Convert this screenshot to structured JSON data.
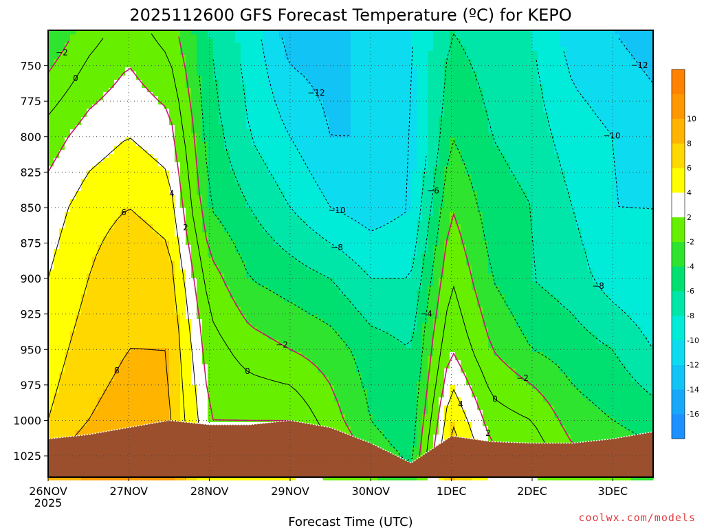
{
  "chart_data": {
    "type": "heatmap",
    "title": "2025112600 GFS Forecast Temperature (ºC) for KEPO",
    "xlabel": "Forecast Time (UTC)",
    "ylabel": "",
    "credit": "coolwx.com/models",
    "y_scale": "pressure (hPa), inverted",
    "ylim": [
      1040,
      725
    ],
    "y_ticks": [
      "750",
      "775",
      "800",
      "825",
      "850",
      "875",
      "900",
      "925",
      "950",
      "975",
      "1000",
      "1025"
    ],
    "x_ticks": [
      "26NOV",
      "27NOV",
      "28NOV",
      "29NOV",
      "30NOV",
      "1DEC",
      "2DEC",
      "3DEC"
    ],
    "x_tick_year": "2025",
    "x_range_days": [
      0,
      7.5
    ],
    "grid": true,
    "colorbar": {
      "placement": "right",
      "levels": [
        -18,
        -16,
        -14,
        -12,
        -10,
        -8,
        -6,
        -4,
        -2,
        2,
        4,
        6,
        8,
        10,
        12
      ],
      "labels": [
        "-16",
        "-14",
        "-12",
        "-10",
        "-8",
        "-6",
        "-4",
        "-2",
        "2",
        "4",
        "6",
        "8",
        "10"
      ],
      "colors": [
        "#1e90ff",
        "#18a8fa",
        "#12c3f5",
        "#0ddcf0",
        "#00ecd8",
        "#00e6a8",
        "#00e070",
        "#2ee42e",
        "#66f000",
        "#ffffff",
        "#ffff00",
        "#ffd800",
        "#ffb400",
        "#ff9800",
        "#ff8200"
      ]
    },
    "contour_labels": [
      "-12",
      "-10",
      "-8",
      "-6",
      "-4",
      "-2",
      "0",
      "2",
      "4",
      "6",
      "8"
    ],
    "profiles": [
      {
        "t": 0.0,
        "temps": {
          "725": -4,
          "800": 1,
          "850": 3,
          "900": 4,
          "950": 5,
          "1000": 6
        }
      },
      {
        "t": 0.5,
        "temps": {
          "725": -1,
          "800": 3,
          "850": 5,
          "900": 6,
          "950": 7,
          "1000": 8
        }
      },
      {
        "t": 1.0,
        "temps": {
          "725": 1,
          "800": 4,
          "850": 6,
          "900": 8,
          "950": 8,
          "1000": 9
        }
      },
      {
        "t": 1.5,
        "temps": {
          "725": -1,
          "800": 3,
          "850": 5,
          "900": 7,
          "950": 8,
          "1000": 8
        }
      },
      {
        "t": 2.0,
        "temps": {
          "725": -6,
          "800": -5,
          "850": -4,
          "900": -1,
          "950": 1,
          "1000": 2
        }
      },
      {
        "t": 2.5,
        "temps": {
          "725": -9,
          "800": -8,
          "850": -6,
          "900": -4,
          "950": -1,
          "1000": 2
        }
      },
      {
        "t": 3.0,
        "temps": {
          "725": -13,
          "800": -10,
          "850": -8,
          "900": -5,
          "950": -2,
          "1000": 2
        }
      },
      {
        "t": 3.5,
        "temps": {
          "725": -13,
          "800": -12,
          "850": -10,
          "900": -6,
          "950": -3,
          "1000": -1
        }
      },
      {
        "t": 4.0,
        "temps": {
          "725": -11,
          "800": -12,
          "850": -11,
          "900": -8,
          "950": -5,
          "1000": -4
        }
      },
      {
        "t": 4.5,
        "temps": {
          "725": -10,
          "800": -11,
          "850": -10,
          "900": -8,
          "950": -6,
          "1000": -6
        }
      },
      {
        "t": 5.0,
        "temps": {
          "725": -6,
          "800": -4,
          "850": -2,
          "900": 0,
          "950": 2,
          "1000": 6
        }
      },
      {
        "t": 5.5,
        "temps": {
          "725": -7,
          "800": -6,
          "850": -5,
          "900": -4,
          "950": -2,
          "1000": 1
        }
      },
      {
        "t": 6.0,
        "temps": {
          "725": -8,
          "800": -7,
          "850": -6,
          "900": -6,
          "950": -4,
          "1000": 0
        }
      },
      {
        "t": 6.5,
        "temps": {
          "725": -11,
          "800": -9,
          "850": -8,
          "900": -7,
          "950": -5,
          "1000": -3
        }
      },
      {
        "t": 7.0,
        "temps": {
          "725": -12,
          "800": -10,
          "850": -10,
          "900": -9,
          "950": -6,
          "1000": -4
        }
      },
      {
        "t": 7.5,
        "temps": {
          "725": -13,
          "800": -11,
          "850": -10,
          "900": -10,
          "950": -8,
          "1000": -5
        }
      }
    ],
    "surface_pressure": [
      {
        "t": 0.0,
        "p": 1013
      },
      {
        "t": 0.5,
        "p": 1010
      },
      {
        "t": 1.0,
        "p": 1005
      },
      {
        "t": 1.5,
        "p": 1000
      },
      {
        "t": 2.0,
        "p": 1003
      },
      {
        "t": 2.5,
        "p": 1003
      },
      {
        "t": 3.0,
        "p": 1000
      },
      {
        "t": 3.5,
        "p": 1005
      },
      {
        "t": 4.0,
        "p": 1016
      },
      {
        "t": 4.5,
        "p": 1030
      },
      {
        "t": 5.0,
        "p": 1011
      },
      {
        "t": 5.5,
        "p": 1015
      },
      {
        "t": 6.0,
        "p": 1016
      },
      {
        "t": 6.5,
        "p": 1016
      },
      {
        "t": 7.0,
        "p": 1013
      },
      {
        "t": 7.5,
        "p": 1008
      }
    ]
  }
}
